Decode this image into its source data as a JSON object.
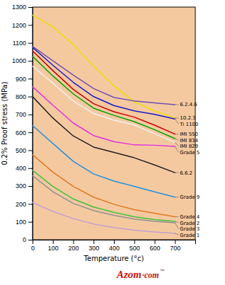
{
  "chart_data": {
    "type": "line",
    "x_label": "Temperature (°c)",
    "y_label": "0.2% Proof stress (MPa)",
    "x": [
      0,
      100,
      200,
      300,
      400,
      500,
      600,
      700
    ],
    "xlim": [
      0,
      800
    ],
    "ylim": [
      0,
      1300
    ],
    "xticks": [
      0,
      100,
      200,
      300,
      400,
      500,
      600,
      700
    ],
    "yticks": [
      0,
      100,
      200,
      300,
      400,
      500,
      600,
      700,
      800,
      900,
      1000,
      1100,
      1200,
      1300
    ],
    "grid": false,
    "series": [
      {
        "name": "10.2.3",
        "color": "#e8e000",
        "values": [
          1255,
          1190,
          1090,
          970,
          860,
          770,
          720,
          680
        ]
      },
      {
        "name": "6.2.4.6",
        "color": "#7050b0",
        "values": [
          1080,
          1000,
          920,
          845,
          795,
          775,
          765,
          755
        ]
      },
      {
        "name": "Ti 1100",
        "color": "#1818c8",
        "values": [
          1075,
          975,
          880,
          800,
          750,
          720,
          700,
          675
        ]
      },
      {
        "name": "IMI 550",
        "color": "#c80000",
        "values": [
          1055,
          945,
          840,
          760,
          715,
          685,
          640,
          590
        ]
      },
      {
        "name": "IMI 834",
        "color": "#00a000",
        "values": [
          1025,
          915,
          815,
          735,
          695,
          660,
          615,
          565
        ]
      },
      {
        "name": "IMI 829",
        "color": "#f0f0f0",
        "values": [
          970,
          875,
          775,
          705,
          668,
          642,
          592,
          545
        ]
      },
      {
        "name": "Grade 5",
        "color": "#e030e0",
        "values": [
          855,
          752,
          652,
          582,
          548,
          530,
          528,
          522
        ]
      },
      {
        "name": "6.6.2",
        "color": "#202020",
        "values": [
          800,
          680,
          580,
          518,
          488,
          458,
          418,
          375
        ]
      },
      {
        "name": "Grade 9",
        "color": "#2090e0",
        "values": [
          638,
          538,
          438,
          368,
          328,
          298,
          268,
          238
        ]
      },
      {
        "name": "Grade 4",
        "color": "#e07820",
        "values": [
          475,
          378,
          298,
          238,
          198,
          168,
          148,
          128
        ]
      },
      {
        "name": "Grade 2",
        "color": "#40c040",
        "values": [
          388,
          298,
          228,
          183,
          153,
          128,
          113,
          103
        ]
      },
      {
        "name": "Grade 3",
        "color": "#909090",
        "values": [
          358,
          268,
          203,
          163,
          136,
          116,
          103,
          95
        ]
      },
      {
        "name": "Grade 1",
        "color": "#c0a0d0",
        "values": [
          208,
          158,
          118,
          88,
          68,
          53,
          43,
          36
        ]
      }
    ],
    "annotations": [
      "Azom",
      "·com",
      "™"
    ]
  }
}
